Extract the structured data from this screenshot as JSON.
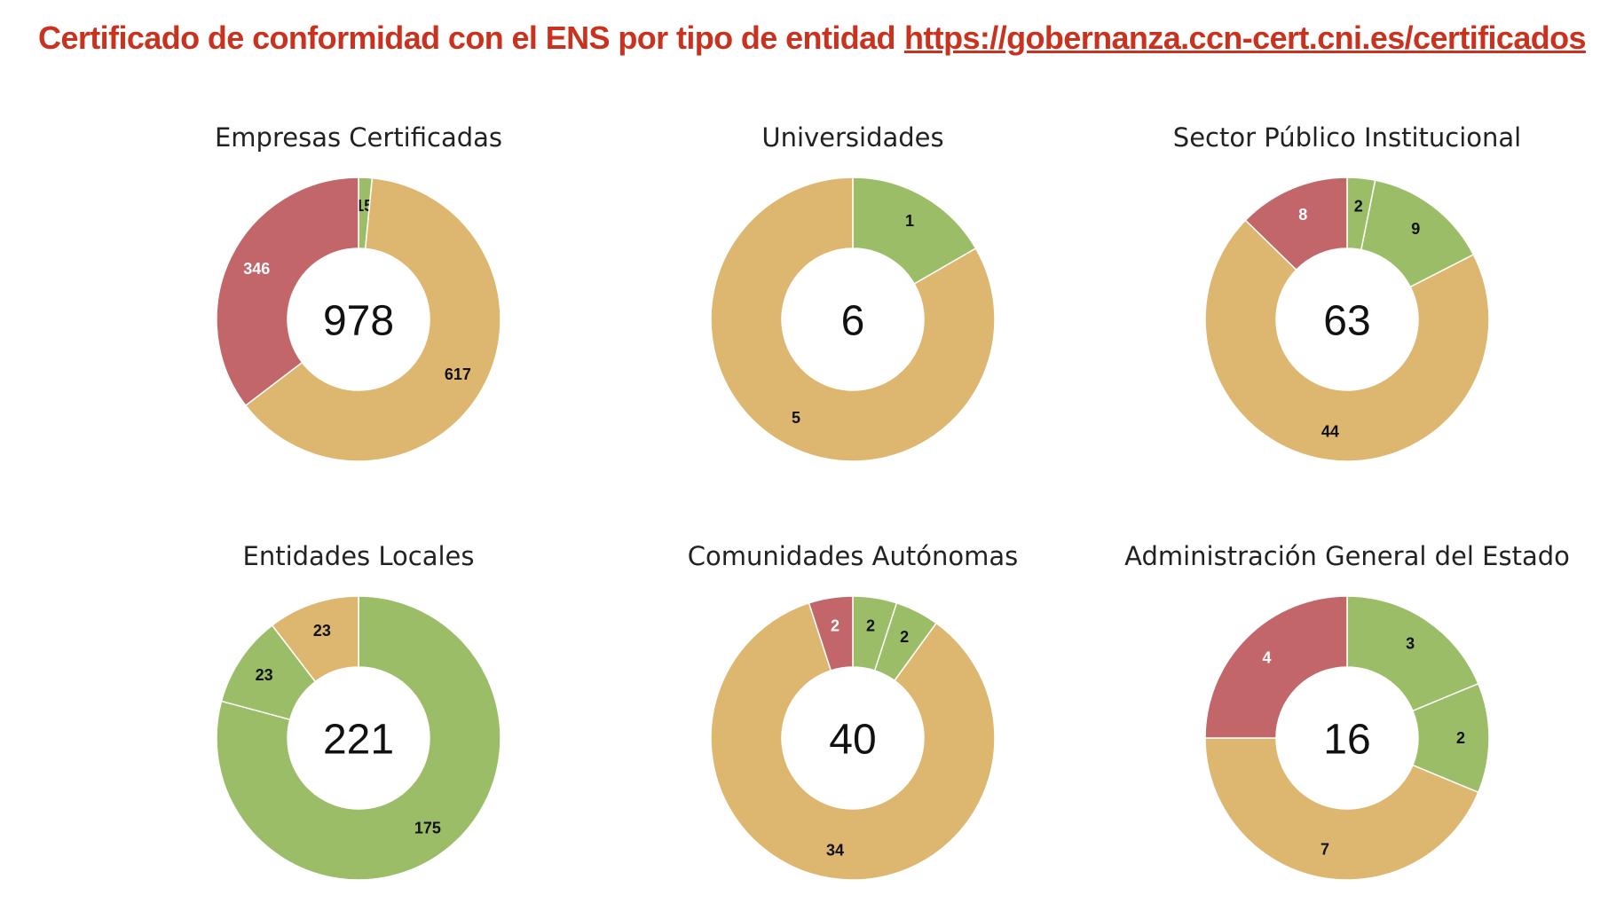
{
  "header": {
    "title": "Certificado de conformidad con el ENS por tipo de entidad",
    "link": "https://gobernanza.ccn-cert.cni.es/certificados"
  },
  "colors": {
    "green": "#9bbd67",
    "amber": "#ddb66f",
    "red": "#c3666a"
  },
  "chart_data": [
    {
      "type": "pie",
      "title": "Empresas Certificadas",
      "total": "978",
      "slices": [
        {
          "value": 15,
          "label": "15",
          "color": "green",
          "label_color": "dark"
        },
        {
          "value": 617,
          "label": "617",
          "color": "amber",
          "label_color": "dark"
        },
        {
          "value": 346,
          "label": "346",
          "color": "red",
          "label_color": "light"
        }
      ]
    },
    {
      "type": "pie",
      "title": "Universidades",
      "total": "6",
      "slices": [
        {
          "value": 1,
          "label": "1",
          "color": "green",
          "label_color": "dark"
        },
        {
          "value": 5,
          "label": "5",
          "color": "amber",
          "label_color": "dark"
        }
      ]
    },
    {
      "type": "pie",
      "title": "Sector Público Institucional",
      "total": "63",
      "slices": [
        {
          "value": 2,
          "label": "2",
          "color": "green",
          "label_color": "dark"
        },
        {
          "value": 9,
          "label": "9",
          "color": "green",
          "label_color": "dark"
        },
        {
          "value": 44,
          "label": "44",
          "color": "amber",
          "label_color": "dark"
        },
        {
          "value": 8,
          "label": "8",
          "color": "red",
          "label_color": "light"
        }
      ]
    },
    {
      "type": "pie",
      "title": "Entidades Locales",
      "total": "221",
      "slices": [
        {
          "value": 175,
          "label": "175",
          "color": "green",
          "label_color": "dark"
        },
        {
          "value": 23,
          "label": "23",
          "color": "green",
          "label_color": "dark"
        },
        {
          "value": 23,
          "label": "23",
          "color": "amber",
          "label_color": "dark"
        }
      ]
    },
    {
      "type": "pie",
      "title": "Comunidades Autónomas",
      "total": "40",
      "slices": [
        {
          "value": 2,
          "label": "2",
          "color": "green",
          "label_color": "dark"
        },
        {
          "value": 2,
          "label": "2",
          "color": "green",
          "label_color": "dark"
        },
        {
          "value": 34,
          "label": "34",
          "color": "amber",
          "label_color": "dark"
        },
        {
          "value": 2,
          "label": "2",
          "color": "red",
          "label_color": "light"
        }
      ]
    },
    {
      "type": "pie",
      "title": "Administración General del Estado",
      "total": "16",
      "slices": [
        {
          "value": 3,
          "label": "3",
          "color": "green",
          "label_color": "dark"
        },
        {
          "value": 2,
          "label": "2",
          "color": "green",
          "label_color": "dark"
        },
        {
          "value": 7,
          "label": "7",
          "color": "amber",
          "label_color": "dark"
        },
        {
          "value": 4,
          "label": "4",
          "color": "red",
          "label_color": "light"
        }
      ]
    }
  ]
}
